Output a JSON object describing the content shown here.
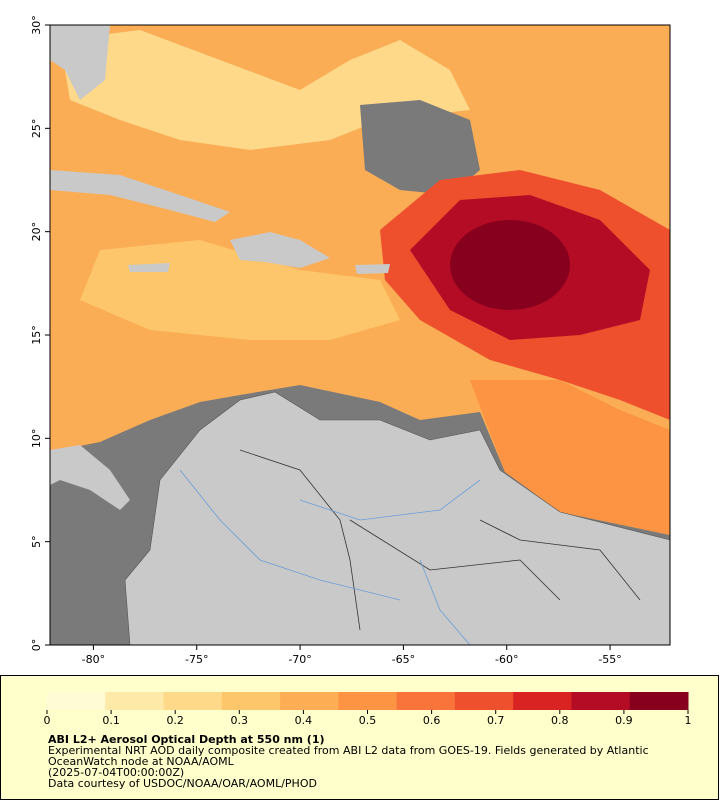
{
  "map": {
    "xlim": [
      -82.1,
      -52.1
    ],
    "ylim": [
      0,
      30
    ],
    "xticks": [
      {
        "value": -80,
        "label": "-80°"
      },
      {
        "value": -75,
        "label": "-75°"
      },
      {
        "value": -70,
        "label": "-70°"
      },
      {
        "value": -65,
        "label": "-65°"
      },
      {
        "value": -60,
        "label": "-60°"
      },
      {
        "value": -55,
        "label": "-55°"
      }
    ],
    "yticks": [
      {
        "value": 0,
        "label": "0°"
      },
      {
        "value": 5,
        "label": "5°"
      },
      {
        "value": 10,
        "label": "10°"
      },
      {
        "value": 15,
        "label": "15°"
      },
      {
        "value": 20,
        "label": "20°"
      },
      {
        "value": 25,
        "label": "25°"
      },
      {
        "value": 30,
        "label": "30°"
      }
    ]
  },
  "colorbar": {
    "lim": [
      0,
      1
    ],
    "ticks": [
      0,
      0.1,
      0.2,
      0.3,
      0.4,
      0.5,
      0.6,
      0.7,
      0.8,
      0.9,
      1
    ],
    "colors": [
      "#fffbd4",
      "#fee9a8",
      "#fed98a",
      "#fec66a",
      "#fdae55",
      "#fc9444",
      "#f8743a",
      "#ee4f2d",
      "#d92322",
      "#b50c26",
      "#87001e"
    ]
  },
  "caption": {
    "title": "ABI L2+ Aerosol Optical Depth at 550 nm (1)",
    "lines": [
      "Experimental NRT AOD daily composite created from ABI L2 data from GOES-19. Fields generated by Atlantic",
      "OceanWatch node at NOAA/AOML",
      "(2025-07-04T00:00:00Z)",
      "Data courtesy of USDOC/NOAA/OAR/AOML/PHOD"
    ]
  }
}
